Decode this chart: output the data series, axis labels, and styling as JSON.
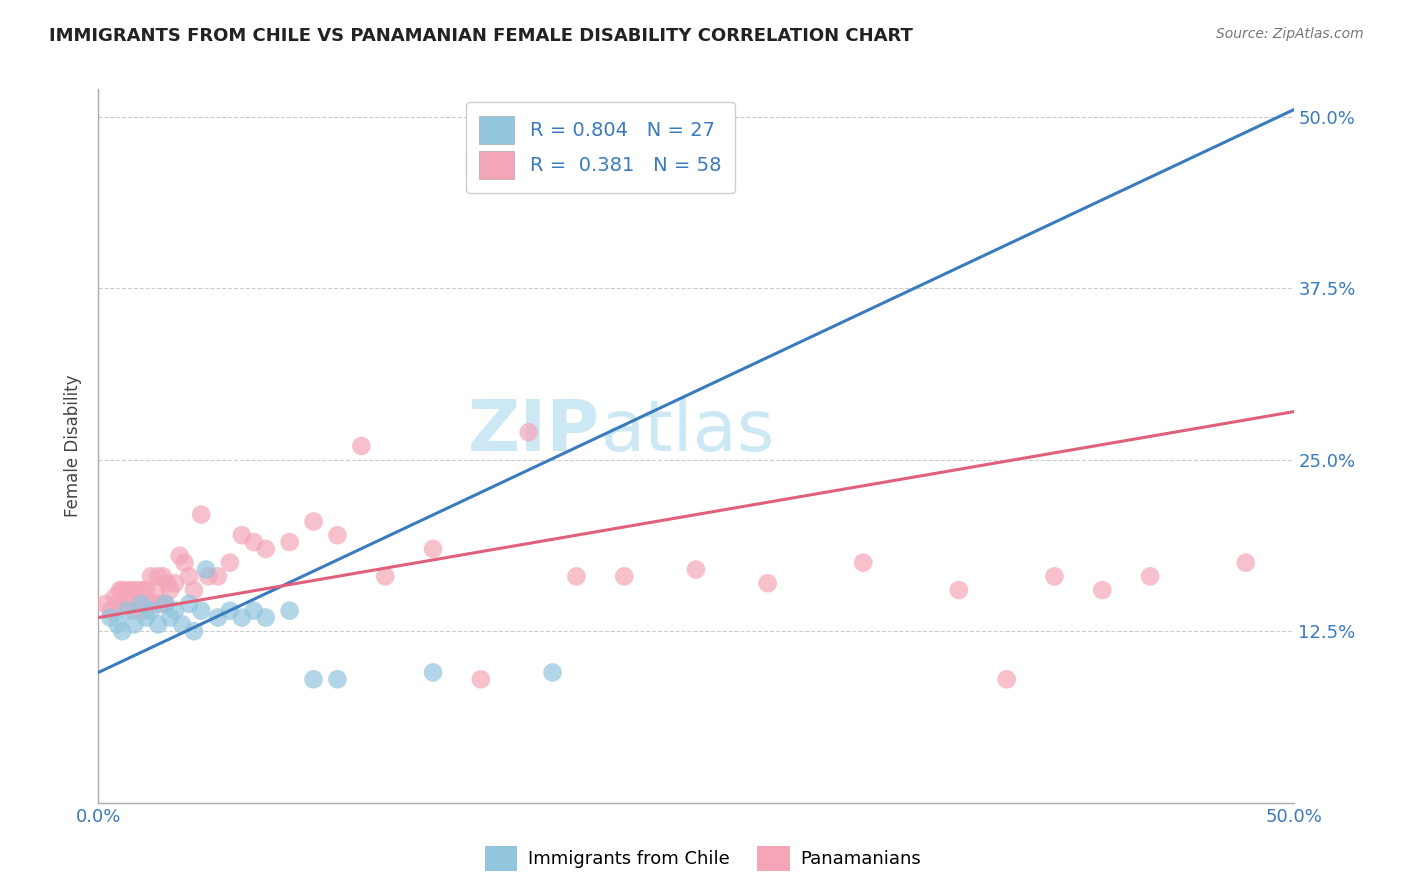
{
  "title": "IMMIGRANTS FROM CHILE VS PANAMANIAN FEMALE DISABILITY CORRELATION CHART",
  "source": "Source: ZipAtlas.com",
  "ylabel": "Female Disability",
  "xlabel": "",
  "legend_label_1": "Immigrants from Chile",
  "legend_label_2": "Panamanians",
  "R1": 0.804,
  "N1": 27,
  "R2": 0.381,
  "N2": 58,
  "color_blue": "#92c5de",
  "color_pink": "#f4a6b8",
  "line_color_blue": "#3a7abf",
  "line_color_pink": "#e0607a",
  "tick_color_blue": "#3a7abf",
  "background_color": "#ffffff",
  "grid_color": "#cccccc",
  "watermark_color": "#cde8f5",
  "xlim": [
    0.0,
    0.5
  ],
  "ylim": [
    0.0,
    0.52
  ],
  "blue_trend_x0": 0.0,
  "blue_trend_y0": 0.095,
  "blue_trend_x1": 0.5,
  "blue_trend_y1": 0.505,
  "pink_trend_x0": 0.0,
  "pink_trend_y0": 0.135,
  "pink_trend_x1": 0.5,
  "pink_trend_y1": 0.285,
  "blue_points_x": [
    0.005,
    0.008,
    0.01,
    0.012,
    0.015,
    0.018,
    0.02,
    0.022,
    0.025,
    0.028,
    0.03,
    0.032,
    0.035,
    0.038,
    0.04,
    0.043,
    0.045,
    0.05,
    0.055,
    0.06,
    0.065,
    0.07,
    0.08,
    0.09,
    0.1,
    0.14,
    0.19
  ],
  "blue_points_y": [
    0.135,
    0.13,
    0.125,
    0.14,
    0.13,
    0.145,
    0.135,
    0.14,
    0.13,
    0.145,
    0.135,
    0.14,
    0.13,
    0.145,
    0.125,
    0.14,
    0.17,
    0.135,
    0.14,
    0.135,
    0.14,
    0.135,
    0.14,
    0.09,
    0.09,
    0.095,
    0.095
  ],
  "pink_points_x": [
    0.003,
    0.005,
    0.007,
    0.008,
    0.009,
    0.01,
    0.011,
    0.012,
    0.013,
    0.014,
    0.015,
    0.016,
    0.017,
    0.018,
    0.019,
    0.02,
    0.021,
    0.022,
    0.023,
    0.024,
    0.025,
    0.026,
    0.027,
    0.028,
    0.029,
    0.03,
    0.032,
    0.034,
    0.036,
    0.038,
    0.04,
    0.043,
    0.046,
    0.05,
    0.055,
    0.06,
    0.065,
    0.07,
    0.08,
    0.09,
    0.1,
    0.11,
    0.12,
    0.14,
    0.16,
    0.18,
    0.2,
    0.22,
    0.25,
    0.28,
    0.32,
    0.36,
    0.4,
    0.44,
    0.48,
    0.52,
    0.42,
    0.38
  ],
  "pink_points_y": [
    0.145,
    0.14,
    0.15,
    0.145,
    0.155,
    0.155,
    0.145,
    0.155,
    0.145,
    0.155,
    0.14,
    0.155,
    0.145,
    0.155,
    0.14,
    0.155,
    0.145,
    0.165,
    0.145,
    0.155,
    0.165,
    0.145,
    0.165,
    0.145,
    0.16,
    0.155,
    0.16,
    0.18,
    0.175,
    0.165,
    0.155,
    0.21,
    0.165,
    0.165,
    0.175,
    0.195,
    0.19,
    0.185,
    0.19,
    0.205,
    0.195,
    0.26,
    0.165,
    0.185,
    0.09,
    0.27,
    0.165,
    0.165,
    0.17,
    0.16,
    0.175,
    0.155,
    0.165,
    0.165,
    0.175,
    0.175,
    0.155,
    0.09
  ]
}
